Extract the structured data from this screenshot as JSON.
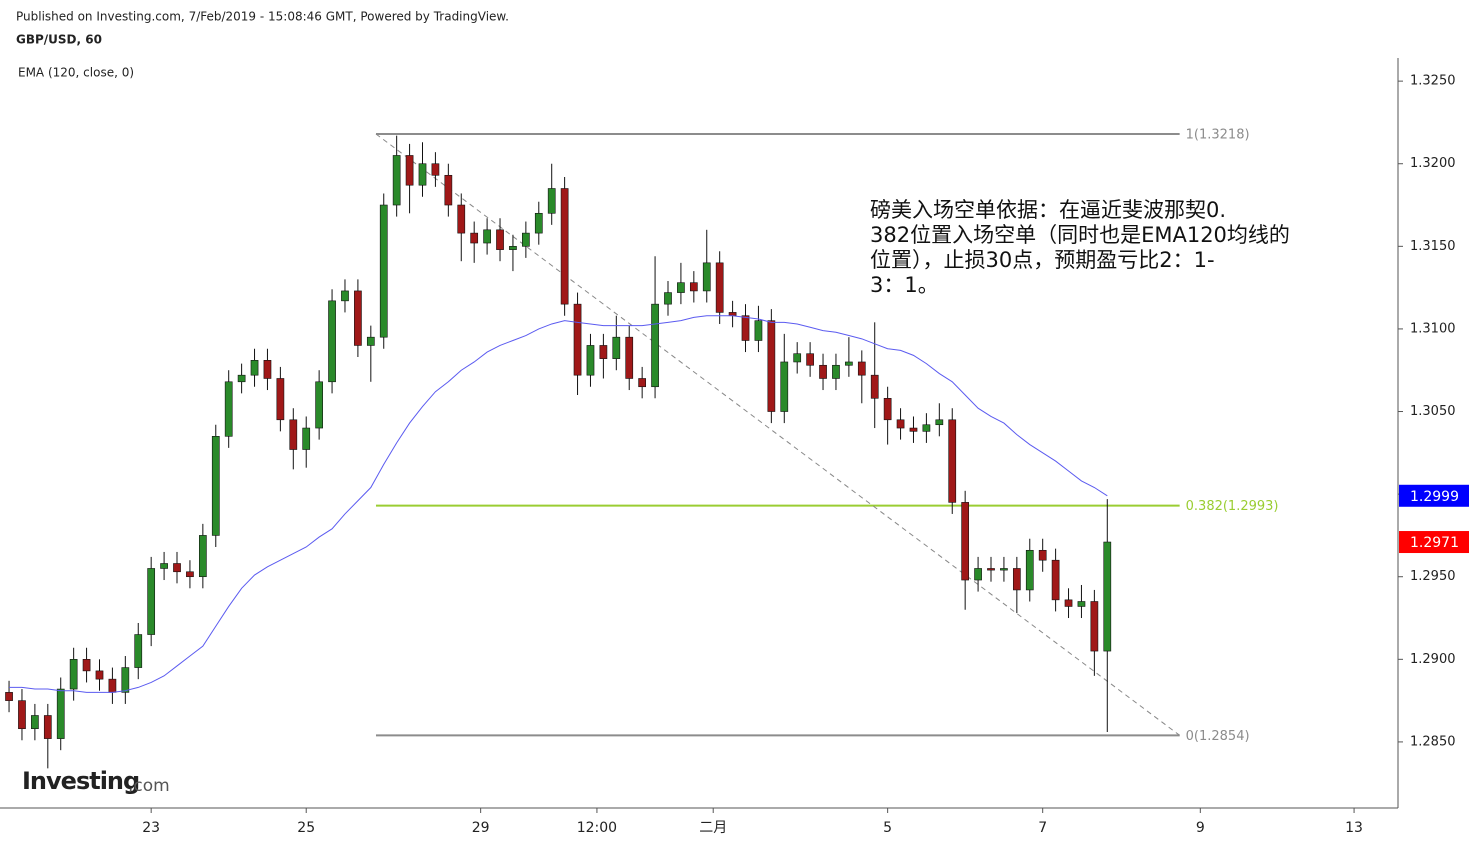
{
  "header": {
    "published": "Published on Investing.com, 7/Feb/2019 - 15:08:46 GMT, Powered by TradingView.",
    "symbol": "GBP/USD, 60",
    "logo": "Investing",
    "logo_suffix": ".com"
  },
  "chart_data": {
    "type": "candlestick",
    "indicator_label": "EMA (120, close, 0)",
    "up_color": "#2a8a2a",
    "down_color": "#a01818",
    "wick_color": "#111111",
    "ema_color": "#5b5bf0",
    "open": [
      1.288,
      1.2875,
      1.2858,
      1.2866,
      1.2852,
      1.2882,
      1.29,
      1.2893,
      1.2888,
      1.288,
      1.2895,
      1.2915,
      1.2955,
      1.2958,
      1.2953,
      1.295,
      1.2975,
      1.3035,
      1.3068,
      1.3072,
      1.3081,
      1.307,
      1.3045,
      1.3027,
      1.304,
      1.3068,
      1.3117,
      1.3123,
      1.309,
      1.3095,
      1.3175,
      1.3205,
      1.3187,
      1.32,
      1.3193,
      1.3175,
      1.3158,
      1.3152,
      1.316,
      1.3148,
      1.315,
      1.3158,
      1.317,
      1.3185,
      1.3115,
      1.3072,
      1.309,
      1.3082,
      1.3095,
      1.307,
      1.3065,
      1.3115,
      1.3122,
      1.3128,
      1.3123,
      1.314,
      1.311,
      1.3108,
      1.3093,
      1.3105,
      1.305,
      1.308,
      1.3085,
      1.3078,
      1.307,
      1.3078,
      1.308,
      1.3072,
      1.3058,
      1.3045,
      1.304,
      1.3038,
      1.3042,
      1.3045,
      1.2995,
      1.2948,
      1.2955,
      1.2954,
      1.2955,
      1.2942,
      1.2966,
      1.296,
      1.2936,
      1.2932,
      1.2935,
      1.2905
    ],
    "high": [
      1.2887,
      1.2882,
      1.2873,
      1.2873,
      1.2889,
      1.2907,
      1.2907,
      1.29,
      1.2895,
      1.2902,
      1.2922,
      1.2962,
      1.2965,
      1.2965,
      1.296,
      1.2982,
      1.3042,
      1.3075,
      1.3079,
      1.3088,
      1.3088,
      1.3077,
      1.3052,
      1.3047,
      1.3075,
      1.3124,
      1.313,
      1.313,
      1.3102,
      1.3182,
      1.3217,
      1.3212,
      1.3213,
      1.3207,
      1.32,
      1.3182,
      1.3165,
      1.3167,
      1.3167,
      1.3157,
      1.3165,
      1.3177,
      1.32,
      1.3192,
      1.3122,
      1.3097,
      1.3097,
      1.3108,
      1.3102,
      1.3077,
      1.3144,
      1.3129,
      1.314,
      1.3135,
      1.316,
      1.3147,
      1.3117,
      1.3115,
      1.3114,
      1.3112,
      1.3097,
      1.3092,
      1.3092,
      1.3085,
      1.3085,
      1.3095,
      1.3087,
      1.3104,
      1.3065,
      1.3052,
      1.3047,
      1.3049,
      1.3055,
      1.3052,
      1.3002,
      1.2962,
      1.2962,
      1.2962,
      1.2962,
      1.2973,
      1.2973,
      1.2967,
      1.2943,
      1.2945,
      1.2942,
      1.2997
    ],
    "low": [
      1.2868,
      1.2851,
      1.2851,
      1.2834,
      1.2845,
      1.2875,
      1.2886,
      1.2881,
      1.2873,
      1.2873,
      1.2888,
      1.2908,
      1.2948,
      1.2946,
      1.2943,
      1.2943,
      1.2968,
      1.3028,
      1.3061,
      1.3065,
      1.3063,
      1.3038,
      1.3015,
      1.3016,
      1.3033,
      1.3061,
      1.311,
      1.3083,
      1.3068,
      1.3088,
      1.3168,
      1.317,
      1.318,
      1.3186,
      1.3168,
      1.3141,
      1.314,
      1.3145,
      1.3141,
      1.3135,
      1.3143,
      1.3151,
      1.3163,
      1.3108,
      1.306,
      1.3065,
      1.307,
      1.3075,
      1.3063,
      1.3058,
      1.3058,
      1.3108,
      1.3115,
      1.3116,
      1.3116,
      1.3103,
      1.3101,
      1.3086,
      1.3086,
      1.3043,
      1.3043,
      1.3073,
      1.3071,
      1.3063,
      1.3063,
      1.3071,
      1.3055,
      1.304,
      1.303,
      1.3033,
      1.3031,
      1.3031,
      1.3035,
      1.2988,
      1.293,
      1.2941,
      1.2947,
      1.2947,
      1.2928,
      1.2935,
      1.2953,
      1.2929,
      1.2925,
      1.2925,
      1.289,
      1.2856
    ],
    "close": [
      1.2875,
      1.2858,
      1.2866,
      1.2852,
      1.2882,
      1.29,
      1.2893,
      1.2888,
      1.288,
      1.2895,
      1.2915,
      1.2955,
      1.2958,
      1.2953,
      1.295,
      1.2975,
      1.3035,
      1.3068,
      1.3072,
      1.3081,
      1.307,
      1.3045,
      1.3027,
      1.304,
      1.3068,
      1.3117,
      1.3123,
      1.309,
      1.3095,
      1.3175,
      1.3205,
      1.3187,
      1.32,
      1.3193,
      1.3175,
      1.3158,
      1.3152,
      1.316,
      1.3148,
      1.315,
      1.3158,
      1.317,
      1.3185,
      1.3115,
      1.3072,
      1.309,
      1.3082,
      1.3095,
      1.307,
      1.3065,
      1.3115,
      1.3122,
      1.3128,
      1.3123,
      1.314,
      1.311,
      1.3108,
      1.3093,
      1.3105,
      1.305,
      1.308,
      1.3085,
      1.3078,
      1.307,
      1.3078,
      1.308,
      1.3072,
      1.3058,
      1.3045,
      1.304,
      1.3038,
      1.3042,
      1.3045,
      1.2995,
      1.2948,
      1.2955,
      1.2954,
      1.2955,
      1.2942,
      1.2966,
      1.296,
      1.2936,
      1.2932,
      1.2935,
      1.2905,
      1.2971
    ],
    "ema": [
      1.2883,
      1.2883,
      1.2882,
      1.2882,
      1.2881,
      1.2881,
      1.288,
      1.288,
      1.288,
      1.2881,
      1.2883,
      1.2886,
      1.289,
      1.2896,
      1.2902,
      1.2908,
      1.292,
      1.2932,
      1.2943,
      1.2951,
      1.2956,
      1.296,
      1.2964,
      1.2968,
      1.2974,
      1.2979,
      1.2988,
      1.2996,
      1.3004,
      1.3018,
      1.3031,
      1.3043,
      1.3053,
      1.3062,
      1.3068,
      1.3075,
      1.308,
      1.3086,
      1.309,
      1.3093,
      1.3096,
      1.31,
      1.3103,
      1.3105,
      1.3104,
      1.3103,
      1.3102,
      1.3102,
      1.3102,
      1.3102,
      1.3103,
      1.3104,
      1.3105,
      1.3107,
      1.3108,
      1.3108,
      1.3108,
      1.3107,
      1.3106,
      1.3104,
      1.3104,
      1.3103,
      1.3101,
      1.3099,
      1.3098,
      1.3096,
      1.3094,
      1.3091,
      1.3088,
      1.3087,
      1.3084,
      1.3079,
      1.3073,
      1.3068,
      1.306,
      1.3052,
      1.3047,
      1.3043,
      1.3036,
      1.303,
      1.3025,
      1.302,
      1.3014,
      1.3008,
      1.3004,
      1.2999
    ],
    "xlim": [
      -0.7,
      107.5
    ],
    "xticks": [
      {
        "value": 11.0,
        "label": "23"
      },
      {
        "value": 23.0,
        "label": "25"
      },
      {
        "value": 36.5,
        "label": "29"
      },
      {
        "value": 45.5,
        "label": "12:00"
      },
      {
        "value": 54.5,
        "label": "二月"
      },
      {
        "value": 68.0,
        "label": "5"
      },
      {
        "value": 80.0,
        "label": "7"
      },
      {
        "value": 92.2,
        "label": "9"
      },
      {
        "value": 104.1,
        "label": "13"
      }
    ],
    "ylim": [
      1.281,
      1.3264
    ],
    "yticks": [
      {
        "value": 1.285,
        "label": "1.2850"
      },
      {
        "value": 1.29,
        "label": "1.2900"
      },
      {
        "value": 1.295,
        "label": "1.2950"
      },
      {
        "value": 1.3,
        "label": "1.3000"
      },
      {
        "value": 1.305,
        "label": "1.3050"
      },
      {
        "value": 1.31,
        "label": "1.3100"
      },
      {
        "value": 1.315,
        "label": "1.3150"
      },
      {
        "value": 1.32,
        "label": "1.3200"
      },
      {
        "value": 1.325,
        "label": "1.3250"
      }
    ],
    "fib_range": [
      28.4,
      90.6
    ],
    "fib_levels": [
      {
        "value": 1.3218,
        "label": "1(1.3218)",
        "color": "#8c8c8c"
      },
      {
        "value": 1.2993,
        "label": "0.382(1.2993)",
        "color": "#9acd32"
      },
      {
        "value": 1.2854,
        "label": "0(1.2854)",
        "color": "#8c8c8c"
      }
    ],
    "trendline": {
      "x": [
        28.4,
        90.6
      ],
      "y": [
        1.3218,
        1.2854
      ]
    },
    "price_tags": [
      {
        "value": 1.2999,
        "color": "#0000ff"
      },
      {
        "value": 1.2971,
        "color": "#ff0000"
      }
    ],
    "annotation": [
      "磅美入场空单依据：在逼近斐波那契0.",
      "382位置入场空单（同时也是EMA120均线的",
      "位置），止损30点，预期盈亏比2：1-",
      "3：1。"
    ]
  }
}
